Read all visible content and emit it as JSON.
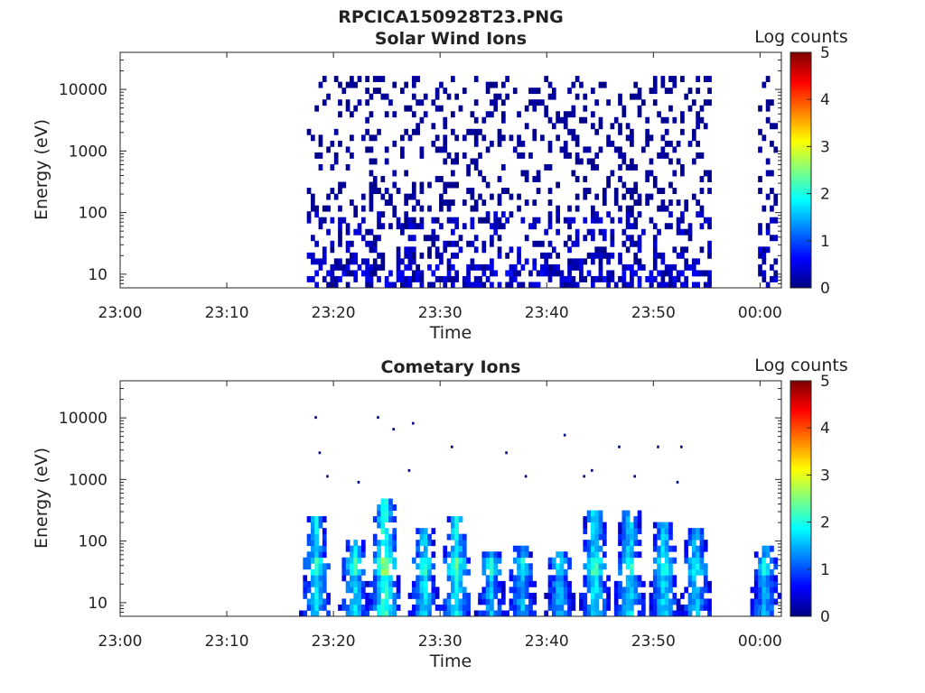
{
  "figure_title": "RPCICA150928T23.PNG",
  "colorbar_label": "Log counts",
  "colorbar_ticks": [
    "0",
    "1",
    "2",
    "3",
    "4",
    "5"
  ],
  "colormap": [
    "#00007f",
    "#0000ff",
    "#007fff",
    "#00ffff",
    "#7fff7f",
    "#ffff00",
    "#ff7f00",
    "#ff0000",
    "#7f0000"
  ],
  "chart_data": [
    {
      "type": "heatmap",
      "title": "Solar Wind Ions",
      "xlabel": "Time",
      "ylabel": "Energy (eV)",
      "x_range_minutes": [
        0,
        62
      ],
      "xticks": [
        {
          "m": 0,
          "label": "23:00"
        },
        {
          "m": 10,
          "label": "23:10"
        },
        {
          "m": 20,
          "label": "23:20"
        },
        {
          "m": 30,
          "label": "23:30"
        },
        {
          "m": 40,
          "label": "23:40"
        },
        {
          "m": 50,
          "label": "23:50"
        },
        {
          "m": 60,
          "label": "00:00"
        }
      ],
      "y_scale": "log",
      "y_range": [
        6,
        40000
      ],
      "yticks": [
        {
          "v": 10,
          "label": "10"
        },
        {
          "v": 100,
          "label": "100"
        },
        {
          "v": 1000,
          "label": "1000"
        },
        {
          "v": 10000,
          "label": "10000"
        }
      ],
      "color_range": [
        0,
        5
      ],
      "data_coverage_minutes": [
        [
          17.4,
          55.6
        ],
        [
          59.5,
          61.7
        ]
      ],
      "regions": [
        {
          "t": [
            17.4,
            55.6
          ],
          "e": [
            6,
            15
          ],
          "density": 0.55,
          "c": [
            0,
            0.7
          ]
        },
        {
          "t": [
            17.4,
            55.6
          ],
          "e": [
            15,
            100
          ],
          "density": 0.32,
          "c": [
            0,
            0.5
          ]
        },
        {
          "t": [
            17.4,
            55.6
          ],
          "e": [
            100,
            15000
          ],
          "density": 0.2,
          "c": [
            0,
            0.2
          ]
        },
        {
          "t": [
            59.5,
            61.7
          ],
          "e": [
            6,
            100
          ],
          "density": 0.4,
          "c": [
            0,
            0.5
          ]
        },
        {
          "t": [
            59.5,
            61.7
          ],
          "e": [
            100,
            15000
          ],
          "density": 0.2,
          "c": [
            0,
            0.2
          ]
        }
      ]
    },
    {
      "type": "heatmap",
      "title": "Cometary Ions",
      "xlabel": "Time",
      "ylabel": "Energy (eV)",
      "x_range_minutes": [
        0,
        62
      ],
      "xticks": [
        {
          "m": 0,
          "label": "23:00"
        },
        {
          "m": 10,
          "label": "23:10"
        },
        {
          "m": 20,
          "label": "23:20"
        },
        {
          "m": 30,
          "label": "23:30"
        },
        {
          "m": 40,
          "label": "23:40"
        },
        {
          "m": 50,
          "label": "23:50"
        },
        {
          "m": 60,
          "label": "00:00"
        }
      ],
      "y_scale": "log",
      "y_range": [
        6,
        40000
      ],
      "yticks": [
        {
          "v": 10,
          "label": "10"
        },
        {
          "v": 100,
          "label": "100"
        },
        {
          "v": 1000,
          "label": "1000"
        },
        {
          "v": 10000,
          "label": "10000"
        }
      ],
      "color_range": [
        0,
        5
      ],
      "data_coverage_minutes": [
        [
          17.4,
          55.6
        ],
        [
          59.5,
          61.7
        ]
      ],
      "bursts": [
        {
          "t": 18.4,
          "emax": 200,
          "peak": 2.0
        },
        {
          "t": 22.0,
          "emax": 100,
          "peak": 2.0
        },
        {
          "t": 24.8,
          "emax": 400,
          "peak": 2.5
        },
        {
          "t": 28.5,
          "emax": 150,
          "peak": 2.0
        },
        {
          "t": 31.5,
          "emax": 200,
          "peak": 2.2
        },
        {
          "t": 34.8,
          "emax": 60,
          "peak": 1.8
        },
        {
          "t": 37.7,
          "emax": 80,
          "peak": 1.8
        },
        {
          "t": 41.2,
          "emax": 60,
          "peak": 1.8
        },
        {
          "t": 44.5,
          "emax": 280,
          "peak": 2.1
        },
        {
          "t": 47.8,
          "emax": 250,
          "peak": 2.0
        },
        {
          "t": 51.0,
          "emax": 180,
          "peak": 2.0
        },
        {
          "t": 54.0,
          "emax": 130,
          "peak": 1.9
        },
        {
          "t": 60.5,
          "emax": 80,
          "peak": 1.8
        }
      ],
      "sparse_points": [
        {
          "t": 18.5,
          "e": 10000
        },
        {
          "t": 18.9,
          "e": 2700
        },
        {
          "t": 19.4,
          "e": 950
        },
        {
          "t": 22.5,
          "e": 900
        },
        {
          "t": 24.3,
          "e": 10500
        },
        {
          "t": 25.6,
          "e": 6500
        },
        {
          "t": 27.0,
          "e": 1400
        },
        {
          "t": 27.5,
          "e": 8500
        },
        {
          "t": 31.0,
          "e": 3500
        },
        {
          "t": 36.2,
          "e": 2400
        },
        {
          "t": 38.0,
          "e": 1000
        },
        {
          "t": 41.8,
          "e": 4700
        },
        {
          "t": 43.6,
          "e": 950
        },
        {
          "t": 44.3,
          "e": 1400
        },
        {
          "t": 46.8,
          "e": 3500
        },
        {
          "t": 48.5,
          "e": 1050
        },
        {
          "t": 50.4,
          "e": 3300
        },
        {
          "t": 52.2,
          "e": 800
        },
        {
          "t": 52.8,
          "e": 3300
        }
      ]
    }
  ]
}
